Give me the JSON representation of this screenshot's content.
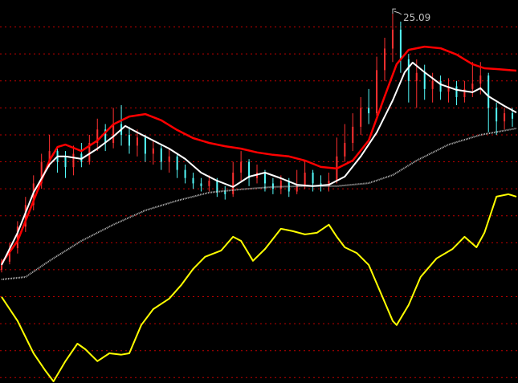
{
  "chart_data": {
    "type": "candlestick",
    "title": "",
    "xlabel": "",
    "ylabel": "",
    "ylim": [
      11.4,
      25.6
    ],
    "xlim": [
      0,
      129
    ],
    "grid": true,
    "gridlines": [
      24.6,
      23.6,
      22.6,
      21.6,
      20.6,
      19.6,
      18.6,
      17.6,
      16.6,
      15.6,
      14.6,
      13.6,
      12.6,
      11.6
    ],
    "colors": {
      "background": "#000000",
      "grid": "#c00000",
      "up": "#ff3030",
      "down": "#54fcfc",
      "ma_short": "#ffffff",
      "ma_mid": "#ff0000",
      "ma_long": "#c0c0c0",
      "indicator": "#ffff00",
      "label": "#c0c0c0"
    },
    "high_marker": {
      "bar": 98,
      "price": 25.09,
      "label": "25.09"
    },
    "candles_format": [
      "bar",
      "open",
      "close",
      "high",
      "low"
    ],
    "candles": [
      [
        0,
        15.6,
        15.9,
        16.0,
        15.5
      ],
      [
        2,
        15.9,
        16.4,
        16.6,
        15.8
      ],
      [
        4,
        16.4,
        17.2,
        17.4,
        16.2
      ],
      [
        6,
        17.2,
        18.0,
        18.3,
        17.0
      ],
      [
        8,
        18.0,
        18.8,
        19.1,
        17.8
      ],
      [
        10,
        18.8,
        19.6,
        19.9,
        18.6
      ],
      [
        12,
        19.6,
        20.0,
        20.6,
        19.4
      ],
      [
        14,
        20.0,
        19.6,
        20.1,
        19.2
      ],
      [
        16,
        19.8,
        19.4,
        20.0,
        19.0
      ],
      [
        18,
        19.4,
        19.9,
        20.2,
        19.1
      ],
      [
        20,
        19.9,
        19.6,
        20.3,
        19.4
      ],
      [
        22,
        19.6,
        20.3,
        20.6,
        19.5
      ],
      [
        24,
        20.3,
        20.8,
        21.2,
        20.0
      ],
      [
        26,
        20.8,
        20.3,
        21.0,
        20.0
      ],
      [
        28,
        20.3,
        21.0,
        21.6,
        20.1
      ],
      [
        30,
        21.0,
        20.6,
        21.7,
        20.2
      ],
      [
        32,
        20.6,
        20.2,
        20.9,
        19.9
      ],
      [
        34,
        20.2,
        20.5,
        20.8,
        19.8
      ],
      [
        36,
        20.5,
        19.9,
        20.6,
        19.6
      ],
      [
        38,
        19.9,
        20.1,
        20.4,
        19.5
      ],
      [
        40,
        20.1,
        19.6,
        20.2,
        19.3
      ],
      [
        42,
        19.6,
        19.8,
        20.1,
        19.2
      ],
      [
        44,
        19.8,
        19.3,
        19.9,
        19.0
      ],
      [
        46,
        19.3,
        19.0,
        19.5,
        18.8
      ],
      [
        48,
        19.0,
        18.8,
        19.2,
        18.6
      ],
      [
        50,
        18.8,
        18.7,
        19.0,
        18.5
      ],
      [
        52,
        18.7,
        18.9,
        19.1,
        18.5
      ],
      [
        54,
        18.9,
        18.5,
        19.0,
        18.3
      ],
      [
        56,
        18.5,
        18.4,
        18.7,
        18.2
      ],
      [
        58,
        18.4,
        19.2,
        19.6,
        18.3
      ],
      [
        60,
        19.2,
        19.6,
        20.0,
        18.9
      ],
      [
        62,
        19.6,
        19.0,
        19.7,
        18.7
      ],
      [
        64,
        19.0,
        19.2,
        19.5,
        18.8
      ],
      [
        66,
        19.2,
        18.8,
        19.3,
        18.5
      ],
      [
        68,
        18.8,
        18.6,
        19.0,
        18.4
      ],
      [
        70,
        18.6,
        18.9,
        19.1,
        18.4
      ],
      [
        72,
        18.9,
        18.5,
        19.0,
        18.3
      ],
      [
        74,
        18.5,
        18.7,
        19.3,
        18.4
      ],
      [
        76,
        18.7,
        19.2,
        19.6,
        18.6
      ],
      [
        78,
        19.2,
        18.8,
        19.3,
        18.5
      ],
      [
        80,
        18.8,
        18.7,
        19.1,
        18.5
      ],
      [
        82,
        18.7,
        18.9,
        19.2,
        18.5
      ],
      [
        84,
        18.9,
        19.8,
        20.5,
        18.8
      ],
      [
        86,
        19.8,
        20.3,
        21.0,
        19.6
      ],
      [
        88,
        20.3,
        20.9,
        21.4,
        20.0
      ],
      [
        90,
        20.9,
        21.6,
        22.0,
        20.6
      ],
      [
        92,
        21.6,
        21.4,
        22.3,
        21.0
      ],
      [
        94,
        21.4,
        23.0,
        23.5,
        21.3
      ],
      [
        96,
        23.0,
        23.8,
        24.2,
        22.6
      ],
      [
        98,
        23.8,
        24.5,
        25.09,
        23.3
      ],
      [
        100,
        24.5,
        23.4,
        24.8,
        22.9
      ],
      [
        102,
        23.4,
        22.6,
        23.6,
        21.8
      ],
      [
        104,
        22.6,
        22.9,
        23.4,
        21.6
      ],
      [
        106,
        22.9,
        22.3,
        23.2,
        21.9
      ],
      [
        108,
        22.3,
        22.6,
        22.9,
        21.8
      ],
      [
        110,
        22.6,
        22.2,
        22.8,
        21.9
      ],
      [
        112,
        22.2,
        22.4,
        22.7,
        21.8
      ],
      [
        114,
        22.4,
        22.0,
        22.6,
        21.7
      ],
      [
        116,
        22.0,
        22.3,
        22.6,
        21.8
      ],
      [
        118,
        22.3,
        22.5,
        23.3,
        22.0
      ],
      [
        120,
        22.5,
        22.8,
        23.3,
        22.1
      ],
      [
        122,
        22.8,
        21.6,
        22.9,
        20.7
      ],
      [
        124,
        21.6,
        21.1,
        21.8,
        20.6
      ],
      [
        126,
        21.1,
        21.4,
        21.6,
        20.8
      ],
      [
        128,
        21.4,
        21.2,
        21.6,
        20.9
      ]
    ],
    "series": [
      {
        "key": "ma_short",
        "points": [
          [
            0,
            15.78
          ],
          [
            4,
            16.97
          ],
          [
            8,
            18.46
          ],
          [
            12,
            19.5
          ],
          [
            14,
            19.8
          ],
          [
            16,
            19.8
          ],
          [
            20,
            19.71
          ],
          [
            24,
            20.09
          ],
          [
            28,
            20.54
          ],
          [
            31,
            20.93
          ],
          [
            34,
            20.69
          ],
          [
            38,
            20.39
          ],
          [
            42,
            20.09
          ],
          [
            46,
            19.71
          ],
          [
            50,
            19.2
          ],
          [
            54,
            18.9
          ],
          [
            58,
            18.67
          ],
          [
            62,
            19.05
          ],
          [
            66,
            19.2
          ],
          [
            70,
            18.99
          ],
          [
            74,
            18.75
          ],
          [
            78,
            18.7
          ],
          [
            82,
            18.75
          ],
          [
            86,
            19.05
          ],
          [
            90,
            19.8
          ],
          [
            94,
            20.69
          ],
          [
            98,
            21.88
          ],
          [
            101,
            22.92
          ],
          [
            103,
            23.28
          ],
          [
            106,
            22.92
          ],
          [
            110,
            22.47
          ],
          [
            114,
            22.27
          ],
          [
            118,
            22.18
          ],
          [
            120,
            22.33
          ],
          [
            122,
            22.03
          ],
          [
            126,
            21.67
          ],
          [
            129,
            21.43
          ]
        ]
      },
      {
        "key": "ma_mid",
        "points": [
          [
            0,
            15.84
          ],
          [
            4,
            16.67
          ],
          [
            8,
            18.16
          ],
          [
            12,
            19.65
          ],
          [
            14,
            20.15
          ],
          [
            16,
            20.24
          ],
          [
            20,
            20.0
          ],
          [
            24,
            20.39
          ],
          [
            28,
            20.99
          ],
          [
            32,
            21.28
          ],
          [
            36,
            21.37
          ],
          [
            40,
            21.14
          ],
          [
            44,
            20.78
          ],
          [
            48,
            20.48
          ],
          [
            52,
            20.3
          ],
          [
            56,
            20.18
          ],
          [
            60,
            20.09
          ],
          [
            64,
            19.95
          ],
          [
            68,
            19.86
          ],
          [
            72,
            19.8
          ],
          [
            76,
            19.65
          ],
          [
            80,
            19.41
          ],
          [
            84,
            19.35
          ],
          [
            88,
            19.65
          ],
          [
            92,
            20.39
          ],
          [
            96,
            22.03
          ],
          [
            99,
            23.22
          ],
          [
            102,
            23.75
          ],
          [
            106,
            23.87
          ],
          [
            110,
            23.81
          ],
          [
            114,
            23.58
          ],
          [
            118,
            23.22
          ],
          [
            121,
            23.07
          ],
          [
            124,
            23.04
          ],
          [
            129,
            22.98
          ]
        ]
      },
      {
        "key": "ma_long",
        "points": [
          [
            0,
            15.24
          ],
          [
            6,
            15.33
          ],
          [
            12,
            15.93
          ],
          [
            20,
            16.67
          ],
          [
            28,
            17.27
          ],
          [
            36,
            17.8
          ],
          [
            44,
            18.16
          ],
          [
            52,
            18.46
          ],
          [
            60,
            18.58
          ],
          [
            68,
            18.67
          ],
          [
            76,
            18.7
          ],
          [
            84,
            18.7
          ],
          [
            92,
            18.81
          ],
          [
            98,
            19.11
          ],
          [
            104,
            19.65
          ],
          [
            112,
            20.24
          ],
          [
            120,
            20.6
          ],
          [
            129,
            20.84
          ]
        ]
      },
      {
        "key": "indicator",
        "points": [
          [
            0,
            14.59
          ],
          [
            4,
            13.7
          ],
          [
            8,
            12.5
          ],
          [
            11,
            11.85
          ],
          [
            13,
            11.46
          ],
          [
            16,
            12.21
          ],
          [
            19,
            12.86
          ],
          [
            21,
            12.65
          ],
          [
            24,
            12.21
          ],
          [
            27,
            12.5
          ],
          [
            30,
            12.45
          ],
          [
            32,
            12.5
          ],
          [
            35,
            13.55
          ],
          [
            38,
            14.14
          ],
          [
            42,
            14.53
          ],
          [
            45,
            15.03
          ],
          [
            48,
            15.63
          ],
          [
            51,
            16.08
          ],
          [
            55,
            16.31
          ],
          [
            58,
            16.82
          ],
          [
            60,
            16.67
          ],
          [
            63,
            15.93
          ],
          [
            66,
            16.37
          ],
          [
            70,
            17.12
          ],
          [
            73,
            17.03
          ],
          [
            76,
            16.91
          ],
          [
            79,
            16.97
          ],
          [
            82,
            17.27
          ],
          [
            84,
            16.82
          ],
          [
            86,
            16.43
          ],
          [
            89,
            16.22
          ],
          [
            92,
            15.78
          ],
          [
            95,
            14.74
          ],
          [
            98,
            13.7
          ],
          [
            99,
            13.55
          ],
          [
            102,
            14.29
          ],
          [
            105,
            15.33
          ],
          [
            109,
            16.02
          ],
          [
            113,
            16.37
          ],
          [
            116,
            16.82
          ],
          [
            119,
            16.43
          ],
          [
            121,
            16.97
          ],
          [
            124,
            18.31
          ],
          [
            127,
            18.4
          ],
          [
            129,
            18.31
          ]
        ]
      }
    ]
  }
}
